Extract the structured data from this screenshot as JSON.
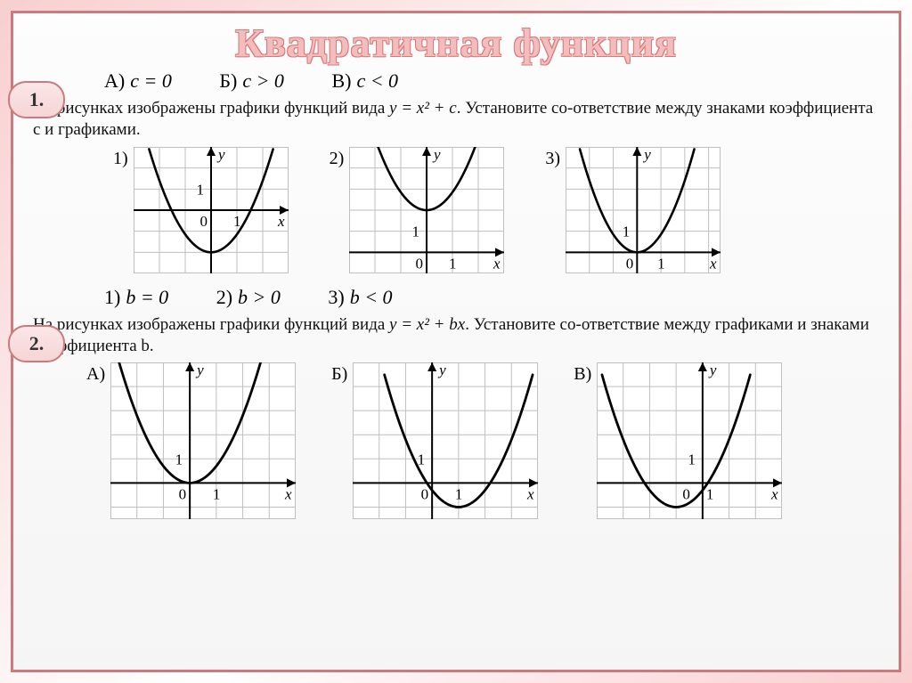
{
  "title": "Квадратичная функция",
  "colors": {
    "frame_border": "#c97b7d",
    "badge_bg_top": "#fbe6e7",
    "badge_bg_bottom": "#f7d5d6",
    "title_fill": "#f4bdbd",
    "title_stroke": "#d97a7a",
    "grid": "#bfbfbf",
    "axis": "#000000",
    "curve": "#000000",
    "text": "#111111"
  },
  "problem1": {
    "badge": "1.",
    "options": [
      {
        "label": "А)",
        "expr": "c = 0"
      },
      {
        "label": "Б)",
        "expr": "c > 0"
      },
      {
        "label": "В)",
        "expr": "c < 0"
      }
    ],
    "description_prefix": "На рисунках изображены графики функций вида ",
    "equation": "y = x² + c",
    "description_suffix": ". Установите со-ответствие между знаками коэффициента c и графиками.",
    "graphs": [
      {
        "label": "1)",
        "grid": {
          "xmin": -3,
          "xmax": 3,
          "ymin": -3,
          "ymax": 3,
          "cell": 1
        },
        "axis_origin": {
          "ox": 0,
          "oy": 0
        },
        "tick_y": {
          "pos": 1,
          "label": "1"
        },
        "tick_x": {
          "pos": 1,
          "label": "1"
        },
        "labels": {
          "x": "x",
          "y": "y",
          "o": "0"
        },
        "parabola": {
          "h": 0,
          "k": -2,
          "a": 0.85,
          "xrange": [
            -2.4,
            2.4
          ]
        },
        "line_width": 2.6
      },
      {
        "label": "2)",
        "grid": {
          "xmin": -3,
          "xmax": 3,
          "ymin": -1,
          "ymax": 5,
          "cell": 1
        },
        "axis_origin": {
          "ox": 0,
          "oy": 0
        },
        "tick_y": {
          "pos": 1,
          "label": "1"
        },
        "tick_x": {
          "pos": 1,
          "label": "1"
        },
        "labels": {
          "x": "x",
          "y": "y",
          "o": "0"
        },
        "parabola": {
          "h": 0,
          "k": 2,
          "a": 0.85,
          "xrange": [
            -2.0,
            2.0
          ]
        },
        "line_width": 2.6
      },
      {
        "label": "3)",
        "grid": {
          "xmin": -3,
          "xmax": 3.5,
          "ymin": -1,
          "ymax": 5,
          "cell": 1
        },
        "axis_origin": {
          "ox": 0,
          "oy": 0
        },
        "tick_y": {
          "pos": 1,
          "label": "1"
        },
        "tick_x": {
          "pos": 1,
          "label": "1"
        },
        "labels": {
          "x": "x",
          "y": "y",
          "o": "0"
        },
        "parabola": {
          "h": 0,
          "k": 0,
          "a": 0.85,
          "xrange": [
            -2.4,
            2.4
          ]
        },
        "line_width": 2.6
      }
    ]
  },
  "problem2": {
    "badge": "2.",
    "options": [
      {
        "label": "1)",
        "expr": "b = 0"
      },
      {
        "label": "2)",
        "expr": "b > 0"
      },
      {
        "label": "3)",
        "expr": "b < 0"
      }
    ],
    "description_prefix": "На рисунках изображены графики функций вида ",
    "equation": "y = x² + bx",
    "description_suffix": ". Установите со-ответствие между графиками и знаками коэффициента b.",
    "graphs": [
      {
        "label": "А)",
        "grid": {
          "xmin": -3,
          "xmax": 4,
          "ymin": -1.5,
          "ymax": 5,
          "cell": 1
        },
        "axis_origin": {
          "ox": 0,
          "oy": 0
        },
        "tick_y": {
          "pos": 1,
          "label": "1"
        },
        "tick_x": {
          "pos": 1,
          "label": "1"
        },
        "labels": {
          "x": "x",
          "y": "y",
          "o": "0"
        },
        "parabola": {
          "h": 0,
          "k": 0,
          "a": 0.7,
          "xrange": [
            -2.7,
            2.7
          ]
        },
        "line_width": 2.8
      },
      {
        "label": "Б)",
        "grid": {
          "xmin": -3,
          "xmax": 4,
          "ymin": -1.5,
          "ymax": 5,
          "cell": 1
        },
        "axis_origin": {
          "ox": 0,
          "oy": 0
        },
        "tick_y": {
          "pos": 1,
          "label": "1"
        },
        "tick_x": {
          "pos": 1,
          "label": "1"
        },
        "labels": {
          "x": "x",
          "y": "y",
          "o": "0"
        },
        "parabola": {
          "h": 1,
          "k": -1,
          "a": 0.7,
          "xrange": [
            -1.8,
            3.8
          ]
        },
        "line_width": 2.8
      },
      {
        "label": "В)",
        "grid": {
          "xmin": -4,
          "xmax": 3,
          "ymin": -1.5,
          "ymax": 5,
          "cell": 1
        },
        "axis_origin": {
          "ox": 0,
          "oy": 0
        },
        "tick_y": {
          "pos": 1,
          "label": "1"
        },
        "tick_x": {
          "pos": 1,
          "label": "1"
        },
        "labels": {
          "x": "x",
          "y": "y",
          "o": "0"
        },
        "parabola": {
          "h": -1,
          "k": -1,
          "a": 0.7,
          "xrange": [
            -3.8,
            1.8
          ]
        },
        "line_width": 2.8,
        "o_left_of_tick": true
      }
    ]
  }
}
